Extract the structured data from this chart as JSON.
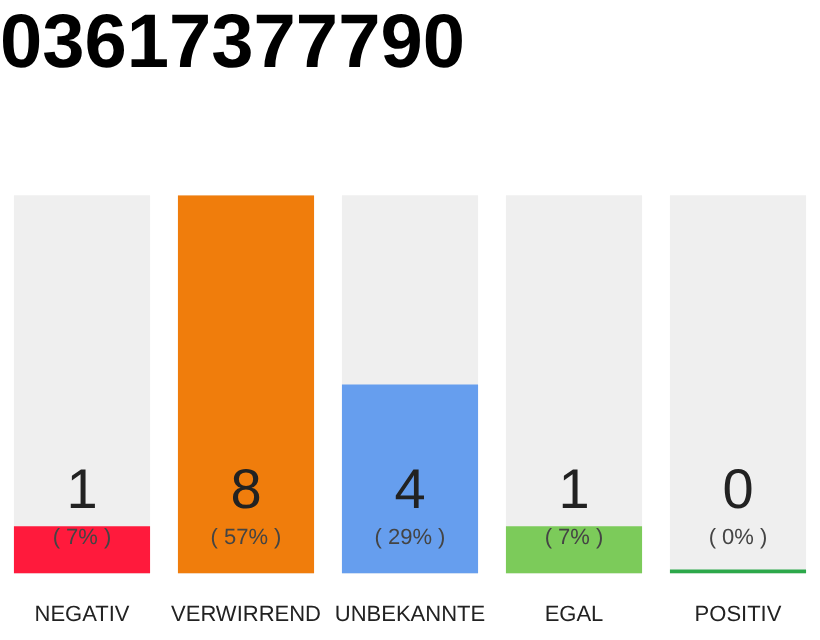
{
  "chart_data": {
    "type": "bar",
    "title": "03617377790",
    "categories": [
      "NEGATIV",
      "VERWIRREND",
      "UNBEKANNTE",
      "EGAL",
      "POSITIV"
    ],
    "values": [
      1,
      8,
      4,
      1,
      0
    ],
    "colors": [
      "#ff1a3c",
      "#f07d0c",
      "#669eee",
      "#7ccb5a",
      "#2ca84a"
    ],
    "data_labels": true,
    "annotations": [
      "( 7% )",
      "( 57% )",
      "( 29% )",
      "( 7% )",
      "( 0% )"
    ],
    "tick_labels": "x",
    "legend": false
  }
}
